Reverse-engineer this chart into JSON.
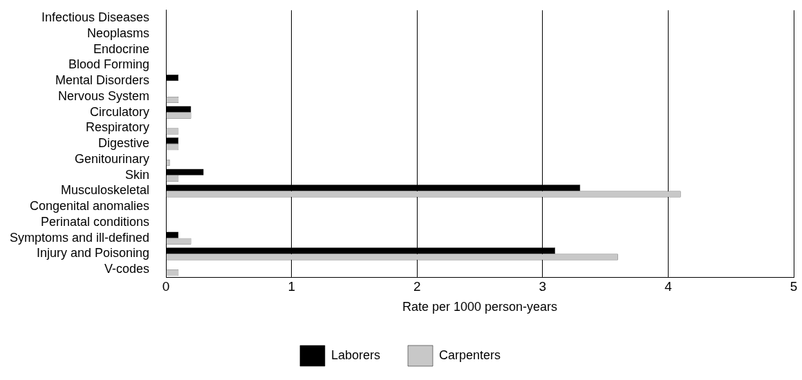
{
  "chart_data": {
    "type": "bar",
    "orientation": "horizontal",
    "xlabel": "Rate per 1000 person-years",
    "categories": [
      "Infectious Diseases",
      "Neoplasms",
      "Endocrine",
      "Blood Forming",
      "Mental Disorders",
      "Nervous System",
      "Circulatory",
      "Respiratory",
      "Digestive",
      "Genitourinary",
      "Skin",
      "Musculoskeletal",
      "Congenital anomalies",
      "Perinatal conditions",
      "Symptoms and ill-defined",
      "Injury and Poisoning",
      "V-codes"
    ],
    "series": [
      {
        "name": "Laborers",
        "color": "#000000",
        "values": [
          0,
          0,
          0,
          0,
          0.1,
          0,
          0.2,
          0,
          0.1,
          0,
          0.3,
          3.3,
          0,
          0,
          0.1,
          3.1,
          0
        ]
      },
      {
        "name": "Carpenters",
        "color": "#c8c8c8",
        "values": [
          0,
          0,
          0,
          0,
          0,
          0.1,
          0.2,
          0.1,
          0.1,
          0.03,
          0.1,
          4.1,
          0,
          0,
          0.2,
          3.6,
          0.1
        ]
      }
    ],
    "xlim": [
      0,
      5
    ],
    "xticks": [
      0,
      1,
      2,
      3,
      4,
      5
    ],
    "grid": "x",
    "legend": "bottom"
  }
}
